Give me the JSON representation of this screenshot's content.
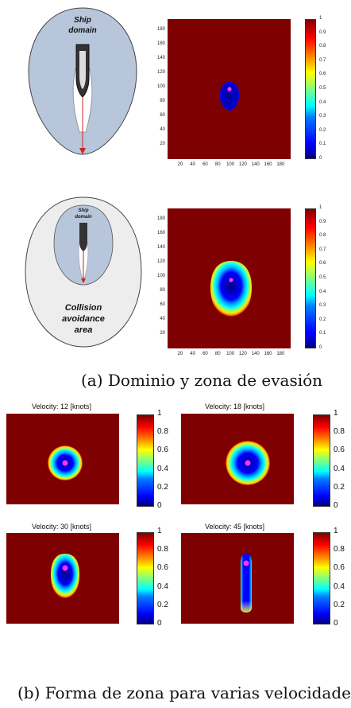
{
  "figure_a": {
    "diagram_top": {
      "label_line1": "Ship",
      "label_line2": "domain"
    },
    "diagram_bottom": {
      "inner_line1": "Ship",
      "inner_line2": "domain",
      "outer_line1": "Collision",
      "outer_line2": "avoidance",
      "outer_line3": "area"
    },
    "caption": "(a) Dominio y zona de evasión"
  },
  "figure_b": {
    "titles": [
      "Velocity: 12 [knots]",
      "Velocity: 18 [knots]",
      "Velocity: 30 [knots]",
      "Velocity: 45 [knots]"
    ],
    "caption": "(b) Forma de zona para varias velocidades"
  },
  "chart_data": [
    {
      "type": "heatmap",
      "title": "",
      "xticks": [
        "20",
        "40",
        "60",
        "80",
        "100",
        "120",
        "140",
        "160",
        "180"
      ],
      "yticks": [
        "180",
        "160",
        "140",
        "120",
        "100",
        "80",
        "60",
        "40",
        "20"
      ],
      "colorbar_ticks": [
        "1",
        "0.9",
        "0.8",
        "0.7",
        "0.6",
        "0.5",
        "0.4",
        "0.3",
        "0.2",
        "0.1",
        "0"
      ],
      "ship_position": [
        100,
        100
      ],
      "zone": "ship domain only"
    },
    {
      "type": "heatmap",
      "title": "",
      "xticks": [
        "20",
        "40",
        "60",
        "80",
        "100",
        "120",
        "140",
        "160",
        "180"
      ],
      "yticks": [
        "180",
        "160",
        "140",
        "120",
        "100",
        "80",
        "60",
        "40",
        "20"
      ],
      "colorbar_ticks": [
        "1",
        "0.9",
        "0.8",
        "0.7",
        "0.6",
        "0.5",
        "0.4",
        "0.3",
        "0.2",
        "0.1",
        "0"
      ],
      "ship_position": [
        100,
        100
      ],
      "zone": "ship domain + collision avoidance area"
    },
    {
      "type": "heatmap",
      "title": "Velocity: 12 [knots]",
      "colorbar_ticks": [
        "1",
        "0.8",
        "0.6",
        "0.4",
        "0.2",
        "0"
      ],
      "zone_shape": "circle"
    },
    {
      "type": "heatmap",
      "title": "Velocity: 18 [knots]",
      "colorbar_ticks": [
        "1",
        "0.8",
        "0.6",
        "0.4",
        "0.2",
        "0"
      ],
      "zone_shape": "circle"
    },
    {
      "type": "heatmap",
      "title": "Velocity: 30 [knots]",
      "colorbar_ticks": [
        "1",
        "0.8",
        "0.6",
        "0.4",
        "0.2",
        "0"
      ],
      "zone_shape": "egg"
    },
    {
      "type": "heatmap",
      "title": "Velocity: 45 [knots]",
      "colorbar_ticks": [
        "1",
        "0.8",
        "0.6",
        "0.4",
        "0.2",
        "0"
      ],
      "zone_shape": "elongated"
    }
  ]
}
